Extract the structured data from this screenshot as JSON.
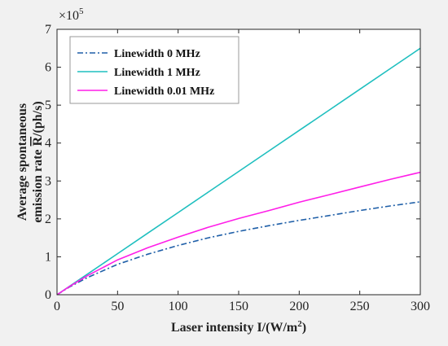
{
  "chart_data": {
    "type": "line",
    "xlabel": "Laser intensity I/(W/m",
    "xlabel_sup": "2",
    "xlabel_tail": ")",
    "ylabel_line1": "Average spontaneous",
    "ylabel_line2_prefix": "emission rate ",
    "ylabel_line2_symbol": "R",
    "ylabel_line2_suffix": "/(ph/s)",
    "y_multiplier_base": "×10",
    "y_multiplier_exp": "5",
    "xlim": [
      0,
      300
    ],
    "ylim": [
      0,
      700000
    ],
    "xticks": [
      0,
      50,
      100,
      150,
      200,
      250,
      300
    ],
    "xtick_labels": [
      "0",
      "50",
      "100",
      "150",
      "200",
      "250",
      "300"
    ],
    "yticks": [
      0,
      100000,
      200000,
      300000,
      400000,
      500000,
      600000,
      700000
    ],
    "ytick_labels": [
      "0",
      "1",
      "2",
      "3",
      "4",
      "5",
      "6",
      "7"
    ],
    "grid": false,
    "legend_position": "top-left",
    "x": [
      0,
      10,
      25,
      50,
      75,
      100,
      125,
      150,
      175,
      200,
      225,
      250,
      275,
      300
    ],
    "series": [
      {
        "name": "Linewidth 0 MHz",
        "color": "#1f5fa8",
        "style": "dashdot",
        "values": [
          0,
          20000,
          45000,
          80000,
          107000,
          130000,
          150000,
          167000,
          182000,
          196000,
          209000,
          222000,
          234000,
          245000
        ]
      },
      {
        "name": "Linewidth 1 MHz",
        "color": "#1fbfbf",
        "style": "solid",
        "values": [
          0,
          21700,
          54200,
          108300,
          162500,
          216700,
          270800,
          325000,
          379200,
          433300,
          487500,
          541700,
          595800,
          650000
        ]
      },
      {
        "name": "Linewidth 0.01 MHz",
        "color": "#ff1ee8",
        "style": "solid",
        "values": [
          0,
          21000,
          50000,
          92000,
          124000,
          152000,
          178000,
          201000,
          222000,
          244000,
          264000,
          284000,
          304000,
          323000
        ]
      }
    ]
  }
}
